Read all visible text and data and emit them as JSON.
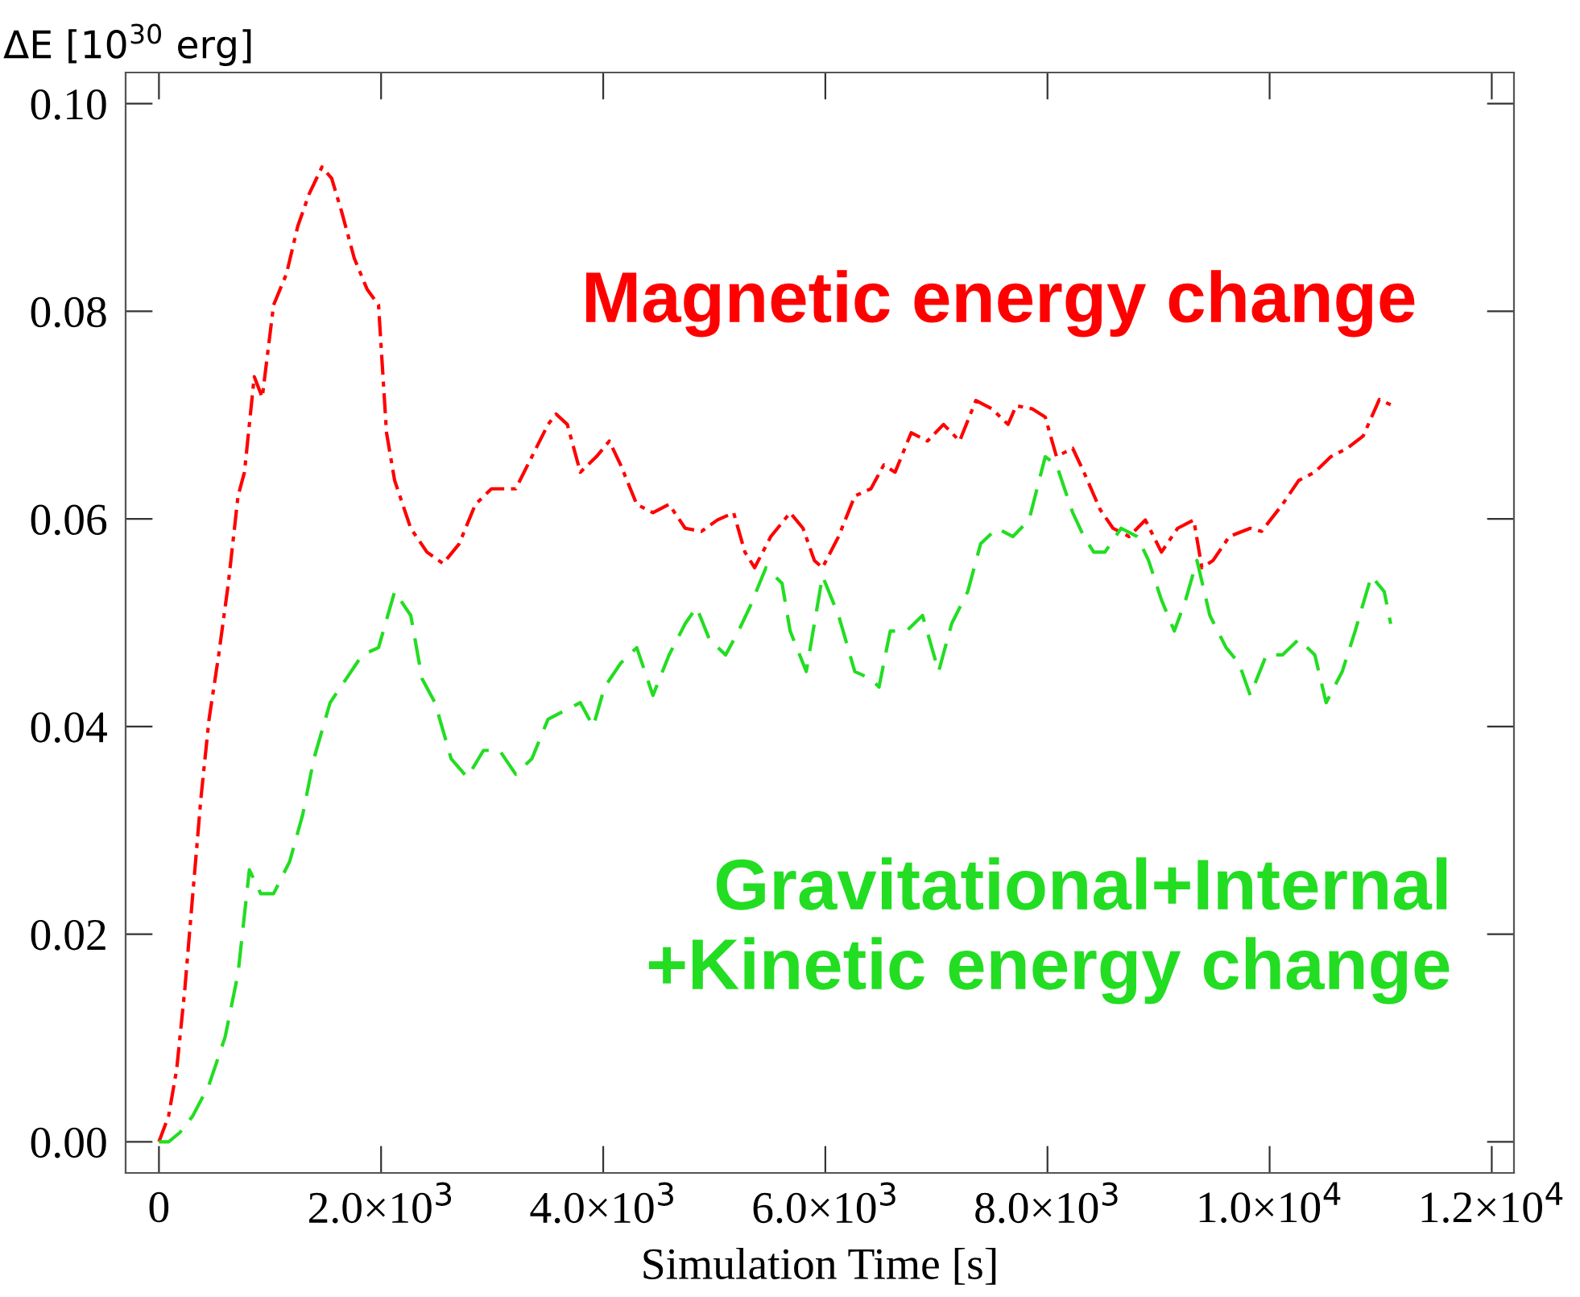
{
  "chart_data": {
    "type": "line",
    "xlabel": "Simulation Time [s]",
    "ylabel": "ΔE [10$^{30}$ erg]",
    "xlim": [
      -300,
      12200
    ],
    "ylim": [
      -0.003,
      0.103
    ],
    "xticks": [
      0,
      {
        "value": 2000,
        "label": "2.0×10$^{3}$"
      },
      {
        "value": 4000,
        "label": "4.0×10$^{3}$"
      },
      {
        "value": 6000,
        "label": "6.0×10$^{3}$"
      },
      {
        "value": 8000,
        "label": "8.0×10$^{3}$"
      },
      {
        "value": 10000,
        "label": "1.0×10$^{4}$"
      },
      {
        "value": 12000,
        "label": "1.2×10$^{4}$"
      }
    ],
    "yticks": [
      {
        "value": 0,
        "label": "0.00"
      },
      {
        "value": 0.02,
        "label": "0.02"
      },
      {
        "value": 0.04,
        "label": "0.04"
      },
      {
        "value": 0.06,
        "label": "0.06"
      },
      {
        "value": 0.08,
        "label": "0.08"
      },
      {
        "value": 0.1,
        "label": "0.10"
      }
    ],
    "grid": false,
    "legend": false,
    "marker": "none",
    "series": [
      {
        "name": "Magnetic energy change",
        "color": "#ff0000",
        "line_style": "dashdot",
        "x": [
          0,
          87,
          160,
          233,
          305,
          378,
          451,
          538,
          625,
          712,
          770,
          858,
          930,
          1032,
          1148,
          1250,
          1352,
          1468,
          1555,
          1642,
          1759,
          1875,
          1977,
          2049,
          2122,
          2267,
          2413,
          2558,
          2703,
          2849,
          2994,
          3212,
          3358,
          3503,
          3576,
          3677,
          3794,
          3939,
          4055,
          4157,
          4302,
          4448,
          4593,
          4738,
          4884,
          5029,
          5174,
          5276,
          5363,
          5509,
          5683,
          5799,
          5901,
          5974,
          6119,
          6265,
          6410,
          6526,
          6628,
          6773,
          6919,
          7064,
          7209,
          7355,
          7500,
          7645,
          7718,
          7863,
          7980,
          8081,
          8227,
          8328,
          8474,
          8590,
          8735,
          8881,
          9026,
          9172,
          9317,
          9390,
          9491,
          9637,
          9826,
          9927,
          10116,
          10262,
          10407,
          10552,
          10698,
          10843,
          10988,
          11090
        ],
        "values": [
          0,
          0.0025,
          0.007,
          0.0147,
          0.0239,
          0.0331,
          0.0407,
          0.0469,
          0.0538,
          0.0622,
          0.0645,
          0.0737,
          0.0717,
          0.0806,
          0.0836,
          0.0882,
          0.0913,
          0.0939,
          0.0928,
          0.0897,
          0.0851,
          0.0821,
          0.0806,
          0.0683,
          0.0637,
          0.0591,
          0.0568,
          0.0557,
          0.0576,
          0.0614,
          0.0629,
          0.0629,
          0.066,
          0.0691,
          0.0701,
          0.0691,
          0.0645,
          0.066,
          0.0675,
          0.0652,
          0.0614,
          0.0606,
          0.0614,
          0.0591,
          0.0588,
          0.0599,
          0.0606,
          0.0568,
          0.0553,
          0.0583,
          0.0606,
          0.0591,
          0.056,
          0.0553,
          0.0583,
          0.0622,
          0.0629,
          0.0652,
          0.0645,
          0.0683,
          0.0675,
          0.0691,
          0.0675,
          0.0714,
          0.0706,
          0.0691,
          0.0709,
          0.0706,
          0.0698,
          0.066,
          0.0668,
          0.0645,
          0.0609,
          0.0591,
          0.0583,
          0.0599,
          0.0568,
          0.0591,
          0.0599,
          0.0553,
          0.056,
          0.0583,
          0.0591,
          0.0588,
          0.0614,
          0.0637,
          0.0645,
          0.066,
          0.0668,
          0.068,
          0.0715,
          0.071
        ]
      },
      {
        "name": "Gravitational+Internal\n+Kinetic energy change",
        "color": "#22dd22",
        "line_style": "dashed",
        "x": [
          0,
          87,
          189,
          305,
          451,
          596,
          712,
          814,
          916,
          1032,
          1177,
          1294,
          1395,
          1541,
          1686,
          1831,
          1977,
          2122,
          2267,
          2369,
          2485,
          2631,
          2776,
          2922,
          3067,
          3212,
          3358,
          3503,
          3648,
          3794,
          3910,
          4012,
          4157,
          4302,
          4448,
          4593,
          4738,
          4840,
          4956,
          5102,
          5218,
          5320,
          5465,
          5610,
          5683,
          5828,
          5974,
          6119,
          6265,
          6410,
          6483,
          6584,
          6730,
          6875,
          7020,
          7137,
          7282,
          7398,
          7544,
          7689,
          7834,
          7980,
          8081,
          8227,
          8328,
          8416,
          8517,
          8663,
          8808,
          8910,
          9026,
          9142,
          9244,
          9346,
          9462,
          9608,
          9724,
          9826,
          9971,
          10116,
          10262,
          10407,
          10509,
          10654,
          10770,
          10916,
          11032,
          11090
        ],
        "values": [
          0,
          0,
          0.0009,
          0.0025,
          0.0055,
          0.0101,
          0.0162,
          0.0262,
          0.0239,
          0.0239,
          0.027,
          0.0315,
          0.0369,
          0.0423,
          0.0446,
          0.0469,
          0.0476,
          0.053,
          0.0507,
          0.0446,
          0.0423,
          0.0369,
          0.0351,
          0.0377,
          0.0377,
          0.0354,
          0.0369,
          0.0407,
          0.0415,
          0.0423,
          0.04,
          0.0438,
          0.0461,
          0.0476,
          0.043,
          0.0469,
          0.0499,
          0.0515,
          0.0484,
          0.0469,
          0.0492,
          0.0515,
          0.0553,
          0.0538,
          0.0492,
          0.0453,
          0.0545,
          0.0507,
          0.0453,
          0.0446,
          0.0438,
          0.0492,
          0.0492,
          0.0507,
          0.0453,
          0.0499,
          0.053,
          0.0576,
          0.0591,
          0.0583,
          0.0599,
          0.066,
          0.0652,
          0.0606,
          0.0583,
          0.0568,
          0.0568,
          0.0591,
          0.0583,
          0.056,
          0.0522,
          0.0492,
          0.0522,
          0.056,
          0.0507,
          0.0476,
          0.0461,
          0.043,
          0.0469,
          0.0469,
          0.0484,
          0.0469,
          0.0423,
          0.0453,
          0.0492,
          0.0545,
          0.053,
          0.0499
        ]
      }
    ]
  }
}
